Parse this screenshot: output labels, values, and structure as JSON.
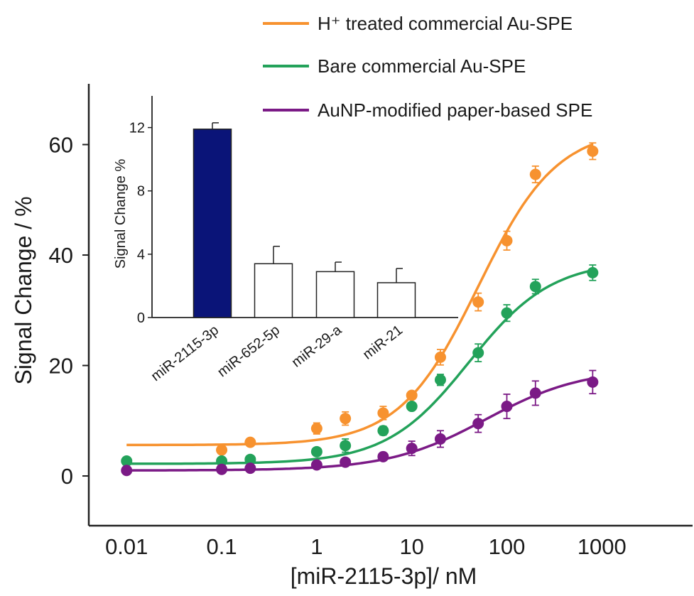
{
  "chart_data": [
    {
      "type": "scatter",
      "xlabel": "[miR-2115-3p]/ nM",
      "ylabel": "Signal Change / %",
      "x_scale": "log",
      "xlim": [
        0.004,
        9000
      ],
      "ylim": [
        -9,
        71
      ],
      "x_ticks": [
        0.01,
        0.1,
        1,
        10,
        100,
        1000
      ],
      "x_tick_labels": [
        "0.01",
        "0.1",
        "1",
        "10",
        "100",
        "1000"
      ],
      "y_ticks": [
        0,
        20,
        40,
        60
      ],
      "y_tick_labels": [
        "0",
        "20",
        "40",
        "60"
      ],
      "legend_position": "top-right",
      "series": [
        {
          "name": "H⁺ treated commercial Au-SPE",
          "color": "#F7922F",
          "x": [
            0.1,
            0.2,
            1,
            2,
            5,
            10,
            20,
            50,
            100,
            200,
            800
          ],
          "y": [
            4.7,
            6.1,
            8.6,
            10.4,
            11.4,
            14.6,
            21.5,
            31.5,
            42.6,
            54.6,
            58.8
          ],
          "err": [
            0.6,
            0.7,
            1.0,
            1.2,
            1.2,
            0.7,
            1.4,
            1.6,
            1.7,
            1.5,
            1.5
          ],
          "fit": {
            "bottom": 5.6,
            "top": 63,
            "ec50": 50,
            "hill": 1.05
          }
        },
        {
          "name": "Bare commercial Au-SPE",
          "color": "#23A25A",
          "x": [
            0.01,
            0.1,
            0.2,
            1,
            2,
            5,
            10,
            20,
            50,
            100,
            200,
            800
          ],
          "y": [
            2.7,
            2.7,
            3.0,
            4.4,
            5.5,
            8.2,
            12.6,
            17.4,
            22.3,
            29.5,
            34.3,
            36.8
          ],
          "err": [
            0.4,
            0.4,
            0.6,
            0.6,
            1.2,
            0.8,
            0.6,
            1.0,
            1.6,
            1.5,
            1.3,
            1.4
          ],
          "fit": {
            "bottom": 2.2,
            "top": 39,
            "ec50": 40,
            "hill": 1.0
          }
        },
        {
          "name": "AuNP-modified paper-based SPE",
          "color": "#7B1A86",
          "x": [
            0.01,
            0.1,
            0.2,
            1,
            2,
            5,
            10,
            20,
            50,
            100,
            200,
            800
          ],
          "y": [
            1.0,
            1.2,
            1.4,
            2.0,
            2.5,
            3.5,
            5.0,
            6.7,
            9.5,
            12.6,
            15.0,
            17.0
          ],
          "err": [
            0.3,
            0.3,
            0.4,
            0.5,
            0.6,
            0.6,
            1.3,
            1.5,
            1.6,
            2.2,
            2.2,
            2.1
          ],
          "fit": {
            "bottom": 1.0,
            "top": 19.5,
            "ec50": 60,
            "hill": 0.85
          }
        }
      ]
    },
    {
      "type": "bar",
      "ylabel": "Signal Change %",
      "categories": [
        "miR-2115-3p",
        "miR-652-5p",
        "miR-29-a",
        "miR-21"
      ],
      "values": [
        11.9,
        3.4,
        2.9,
        2.2
      ],
      "err": [
        0.4,
        1.1,
        0.6,
        0.9
      ],
      "colors": [
        "#0A1478",
        "#FFFFFF",
        "#FFFFFF",
        "#FFFFFF"
      ],
      "ylim": [
        0,
        14
      ],
      "y_ticks": [
        0,
        4,
        8,
        12
      ],
      "y_tick_labels": [
        "0",
        "4",
        "8",
        "12"
      ]
    }
  ]
}
